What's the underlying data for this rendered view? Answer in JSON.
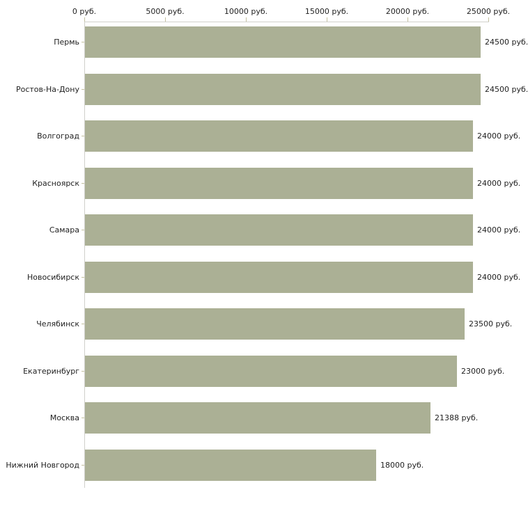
{
  "chart_data": {
    "type": "bar",
    "orientation": "horizontal",
    "categories": [
      "Пермь",
      "Ростов-На-Дону",
      "Волгоград",
      "Красноярск",
      "Самара",
      "Новосибирск",
      "Челябинск",
      "Екатеринбург",
      "Москва",
      "Нижний Новгород"
    ],
    "values": [
      24500,
      24500,
      24000,
      24000,
      24000,
      24000,
      23500,
      23000,
      21388,
      18000
    ],
    "value_labels": [
      "24500 руб.",
      "24500 руб.",
      "24000 руб.",
      "24000 руб.",
      "24000 руб.",
      "24000 руб.",
      "23500 руб.",
      "23000 руб.",
      "21388 руб.",
      "18000 руб."
    ],
    "x_ticks": [
      0,
      5000,
      10000,
      15000,
      20000,
      25000
    ],
    "x_tick_labels": [
      "0 руб.",
      "5000 руб.",
      "10000 руб.",
      "15000 руб.",
      "20000 руб.",
      "25000 руб."
    ],
    "xlim": [
      0,
      25000
    ],
    "unit": "руб.",
    "grid": false,
    "legend": false,
    "axis_position": "top",
    "colors": {
      "bar": "#abb095",
      "axis_line": "#d0d0cb",
      "tick_mark": "#c3c0a0",
      "text": "#222222",
      "background": "#ffffff"
    }
  }
}
